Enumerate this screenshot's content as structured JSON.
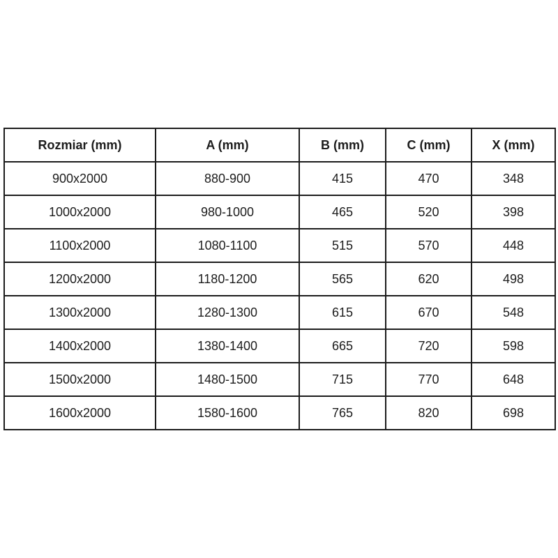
{
  "table": {
    "headers": [
      "Rozmiar (mm)",
      "A (mm)",
      "B (mm)",
      "C (mm)",
      "X (mm)"
    ],
    "rows": [
      [
        "900x2000",
        "880-900",
        "415",
        "470",
        "348"
      ],
      [
        "1000x2000",
        "980-1000",
        "465",
        "520",
        "398"
      ],
      [
        "1100x2000",
        "1080-1100",
        "515",
        "570",
        "448"
      ],
      [
        "1200x2000",
        "1180-1200",
        "565",
        "620",
        "498"
      ],
      [
        "1300x2000",
        "1280-1300",
        "615",
        "670",
        "548"
      ],
      [
        "1400x2000",
        "1380-1400",
        "665",
        "720",
        "598"
      ],
      [
        "1500x2000",
        "1480-1500",
        "715",
        "770",
        "648"
      ],
      [
        "1600x2000",
        "1580-1600",
        "765",
        "820",
        "698"
      ]
    ]
  },
  "colors": {
    "background": "#ffffff",
    "border": "#1c1c1c",
    "text": "#1c1c1c"
  }
}
